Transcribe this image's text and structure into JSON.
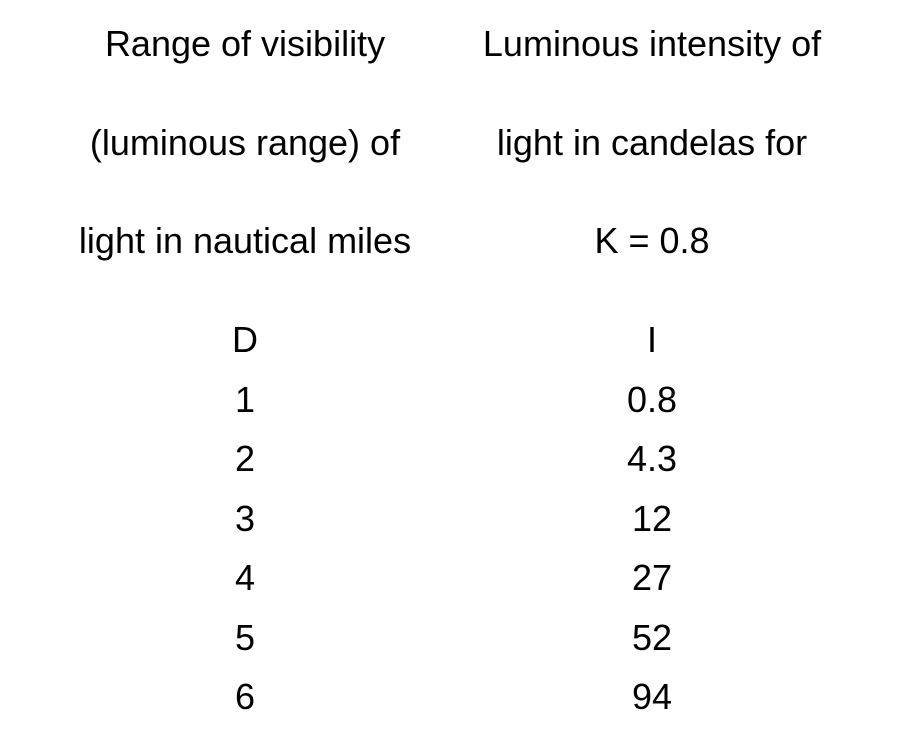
{
  "table": {
    "columns": [
      {
        "header_lines": [
          "Range of visibility",
          "(luminous range) of",
          "light in nautical miles"
        ],
        "symbol": "D",
        "values": [
          "1",
          "2",
          "3",
          "4",
          "5",
          "6"
        ]
      },
      {
        "header_lines": [
          "Luminous intensity of",
          "light in candelas for",
          "K = 0.8"
        ],
        "symbol": "I",
        "values": [
          "0.8",
          "4.3",
          "12",
          "27",
          "52",
          "94"
        ]
      }
    ]
  }
}
